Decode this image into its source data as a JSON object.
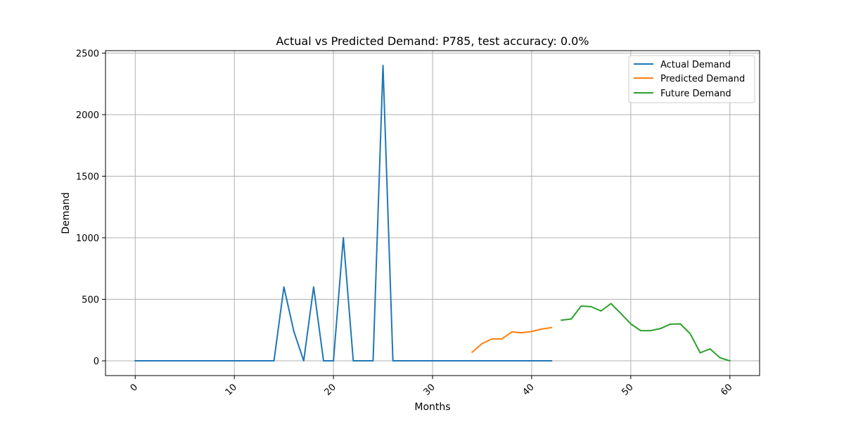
{
  "chart_data": {
    "type": "line",
    "title": "Actual vs Predicted Demand: P785, test accuracy: 0.0%",
    "xlabel": "Months",
    "ylabel": "Demand",
    "xlim": [
      -3,
      63
    ],
    "ylim": [
      -120,
      2520
    ],
    "xticks": [
      0,
      10,
      20,
      30,
      40,
      50,
      60
    ],
    "yticks": [
      0,
      500,
      1000,
      1500,
      2000,
      2500
    ],
    "x_tick_rotation": 45,
    "grid": true,
    "legend_position": "upper right",
    "series": [
      {
        "name": "Actual Demand",
        "color": "#1f77b4",
        "x": [
          0,
          1,
          2,
          3,
          4,
          5,
          6,
          7,
          8,
          9,
          10,
          11,
          12,
          13,
          14,
          15,
          16,
          17,
          18,
          19,
          20,
          21,
          22,
          23,
          24,
          25,
          26,
          27,
          28,
          29,
          30,
          31,
          32,
          33,
          34,
          35,
          36,
          37,
          38,
          39,
          40,
          41,
          42
        ],
        "y": [
          0,
          0,
          0,
          0,
          0,
          0,
          0,
          0,
          0,
          0,
          0,
          0,
          0,
          0,
          0,
          600,
          240,
          0,
          600,
          0,
          0,
          1000,
          0,
          0,
          0,
          2400,
          0,
          0,
          0,
          0,
          0,
          0,
          0,
          0,
          0,
          0,
          0,
          0,
          0,
          0,
          0,
          0,
          0
        ]
      },
      {
        "name": "Predicted Demand",
        "color": "#ff7f0e",
        "x": [
          34,
          35,
          36,
          37,
          38,
          39,
          40,
          41,
          42
        ],
        "y": [
          70,
          140,
          178,
          178,
          235,
          228,
          238,
          258,
          270
        ]
      },
      {
        "name": "Future Demand",
        "color": "#2ca02c",
        "x": [
          43,
          44,
          45,
          46,
          47,
          48,
          49,
          50,
          51,
          52,
          53,
          54,
          55,
          56,
          57,
          58,
          59,
          60
        ],
        "y": [
          330,
          340,
          445,
          440,
          405,
          465,
          385,
          300,
          245,
          245,
          262,
          298,
          300,
          220,
          65,
          97,
          25,
          0
        ]
      }
    ]
  }
}
